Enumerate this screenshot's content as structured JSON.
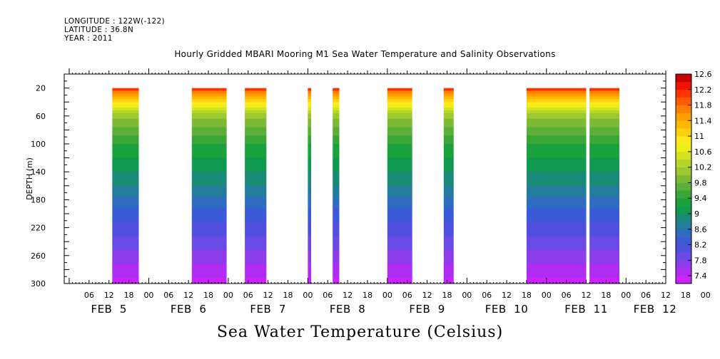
{
  "header": {
    "longitude": "LONGITUDE : 122W(-122)",
    "latitude": "LATITUDE : 36.8N",
    "year": "YEAR : 2011"
  },
  "chart_data": {
    "type": "heatmap",
    "title": "Hourly Gridded MBARI Mooring M1 Sea Water Temperature and Salinity Observations",
    "subtitle": "Sea Water Temperature (Celsius)",
    "ylabel": "DEPTH (m)",
    "xlabel": "",
    "yaxis": {
      "range": [
        300,
        0
      ],
      "reversed": true,
      "ticks": [
        20,
        60,
        100,
        140,
        180,
        220,
        260,
        300
      ]
    },
    "xaxis": {
      "range_hours_from_feb5_00": [
        -1.5,
        180
      ],
      "hour_ticks": [
        "06",
        "12",
        "18",
        "00",
        "06",
        "12",
        "18",
        "00",
        "06",
        "12",
        "18",
        "00",
        "06",
        "12",
        "18",
        "00",
        "06",
        "12",
        "18",
        "00",
        "06",
        "12",
        "18",
        "00",
        "06",
        "12",
        "18",
        "00",
        "06",
        "12",
        "18",
        "00"
      ],
      "date_labels": [
        "FEB 5",
        "FEB 6",
        "FEB 7",
        "FEB 8",
        "FEB 9",
        "FEB 10",
        "FEB 11",
        "FEB 12"
      ]
    },
    "colorbar": {
      "levels": [
        7.4,
        7.6,
        7.8,
        8.0,
        8.2,
        8.4,
        8.6,
        8.8,
        9.0,
        9.2,
        9.4,
        9.6,
        9.8,
        10.0,
        10.2,
        10.4,
        10.6,
        10.8,
        11.0,
        11.2,
        11.4,
        11.6,
        11.8,
        12.0,
        12.2,
        12.4,
        12.6,
        12.8
      ],
      "tick_labels": [
        "7.4",
        "7.8",
        "8.2",
        "8.6",
        "9",
        "9.4",
        "9.8",
        "10.2",
        "10.6",
        "11",
        "11.4",
        "11.8",
        "12.2",
        "12.6"
      ],
      "colors": [
        "#cc22ff",
        "#b02cf2",
        "#8c3ce8",
        "#6a4ae6",
        "#5050e0",
        "#3a5ad8",
        "#2e6cc0",
        "#237c9c",
        "#1a8a78",
        "#109a50",
        "#1ca23c",
        "#3aa638",
        "#5cb03a",
        "#7cba36",
        "#9cc830",
        "#b8d628",
        "#d4e420",
        "#ecee18",
        "#ffe81c",
        "#ffd010",
        "#ffb800",
        "#ff9e00",
        "#ff8000",
        "#ff5a00",
        "#ff3400",
        "#f01400",
        "#c80000"
      ]
    },
    "segments": [
      {
        "start_day": "FEB 5",
        "start_hour": 13,
        "end_hour": 21
      },
      {
        "start_day": "FEB 6",
        "start_hour": 13,
        "end_hour": 23.5
      },
      {
        "start_day": "FEB 7",
        "start_hour": 5,
        "end_hour": 11.5
      },
      {
        "start_day": "FEB 8",
        "start_hour": 0,
        "end_hour": 1
      },
      {
        "start_day": "FEB 8",
        "start_hour": 7.5,
        "end_hour": 9.5
      },
      {
        "start_day": "FEB 9",
        "start_hour": 0,
        "end_hour": 7.5
      },
      {
        "start_day": "FEB 9",
        "start_hour": 17,
        "end_hour": 20
      },
      {
        "start_day": "FEB 10",
        "start_hour": 18,
        "end_hour": 36
      },
      {
        "start_day": "FEB 11",
        "start_hour": 13,
        "end_hour": 22
      }
    ],
    "temperature_profile": [
      {
        "depth": 20,
        "value": 12.4
      },
      {
        "depth": 30,
        "value": 11.6
      },
      {
        "depth": 45,
        "value": 11.0
      },
      {
        "depth": 60,
        "value": 10.3
      },
      {
        "depth": 80,
        "value": 9.9
      },
      {
        "depth": 100,
        "value": 9.6
      },
      {
        "depth": 130,
        "value": 9.3
      },
      {
        "depth": 160,
        "value": 9.0
      },
      {
        "depth": 190,
        "value": 8.6
      },
      {
        "depth": 220,
        "value": 8.3
      },
      {
        "depth": 250,
        "value": 8.0
      },
      {
        "depth": 280,
        "value": 7.7
      },
      {
        "depth": 300,
        "value": 7.5
      }
    ],
    "grid": false,
    "legend": "right colorbar"
  }
}
